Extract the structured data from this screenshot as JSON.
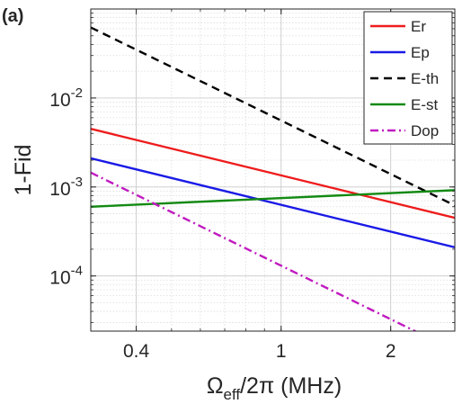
{
  "panel_label": "(a)",
  "chart_data": {
    "type": "line",
    "title": "",
    "xlabel": {
      "main": "Ω",
      "sub": "eff",
      "rest": "/2π (MHz)"
    },
    "ylabel": "1-Fid",
    "xscale": "log",
    "yscale": "log",
    "xlim": [
      0.3,
      3.0
    ],
    "ylim": [
      2.4e-05,
      0.1
    ],
    "grid": true,
    "minor_grid": true,
    "legend_position": "top-right",
    "x_ticks": [
      {
        "value": 0.4,
        "label": "0.4"
      },
      {
        "value": 1,
        "label": "1"
      },
      {
        "value": 2,
        "label": "2"
      }
    ],
    "y_ticks": [
      {
        "value": 0.0001,
        "base": "10",
        "exp": "-4"
      },
      {
        "value": 0.001,
        "base": "10",
        "exp": "-3"
      },
      {
        "value": 0.01,
        "base": "10",
        "exp": "-2"
      }
    ],
    "series": [
      {
        "name": "Er",
        "color": "#ee1c1c",
        "dash": "solid",
        "x": [
          0.3,
          3.0
        ],
        "y": [
          0.0045,
          0.00045
        ]
      },
      {
        "name": "Ep",
        "color": "#1a1ae6",
        "dash": "solid",
        "x": [
          0.3,
          3.0
        ],
        "y": [
          0.0021,
          0.00021
        ]
      },
      {
        "name": "E-th",
        "color": "#000000",
        "dash": "dashed",
        "x": [
          0.3,
          3.0
        ],
        "y": [
          0.062,
          0.00062
        ]
      },
      {
        "name": "E-st",
        "color": "#138a13",
        "dash": "solid",
        "x": [
          0.3,
          3.0
        ],
        "y": [
          0.0006,
          0.00092
        ]
      },
      {
        "name": "Dop",
        "color": "#c01ac0",
        "dash": "dashdot",
        "x": [
          0.3,
          3.0
        ],
        "y": [
          0.00145,
          1.45e-05
        ]
      }
    ]
  }
}
